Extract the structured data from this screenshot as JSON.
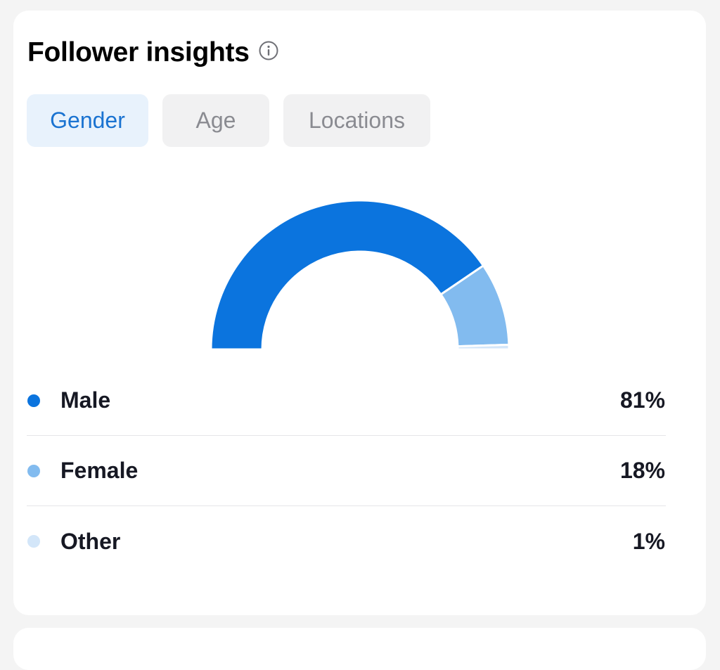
{
  "card": {
    "title": "Follower insights"
  },
  "tabs": [
    {
      "label": "Gender",
      "active": true
    },
    {
      "label": "Age",
      "active": false
    },
    {
      "label": "Locations",
      "active": false
    }
  ],
  "chart_data": {
    "type": "pie",
    "shape": "semi-donut",
    "categories": [
      "Male",
      "Female",
      "Other"
    ],
    "values": [
      81,
      18,
      1
    ],
    "colors": [
      "#0b74de",
      "#82bbef",
      "#d3e6f9"
    ]
  },
  "legend": [
    {
      "label": "Male",
      "value": "81%",
      "color": "#0b74de"
    },
    {
      "label": "Female",
      "value": "18%",
      "color": "#82bbef"
    },
    {
      "label": "Other",
      "value": "1%",
      "color": "#d3e6f9"
    }
  ]
}
